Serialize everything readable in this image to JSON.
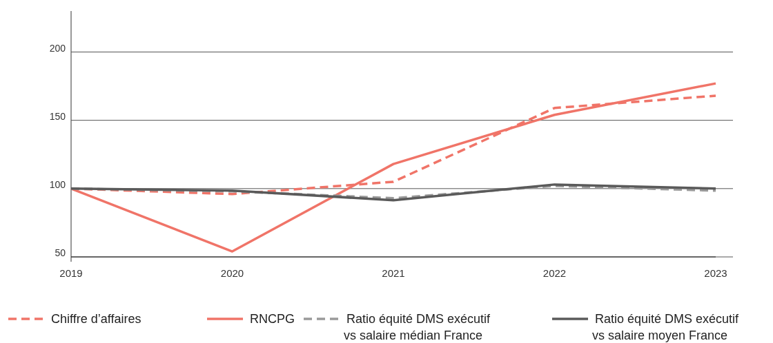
{
  "chart_data": {
    "type": "line",
    "categories": [
      "2019",
      "2020",
      "2021",
      "2022",
      "2023"
    ],
    "ylim": [
      50,
      230
    ],
    "yticks": [
      50,
      100,
      150,
      200
    ],
    "grid": "y",
    "legend": "bottom",
    "series": [
      {
        "name": "Chiffre d’affaires",
        "color": "#f07468",
        "line_style": "dashed",
        "values": [
          100,
          96,
          105,
          159,
          168
        ]
      },
      {
        "name": "RNCPG",
        "color": "#f07468",
        "line_style": "solid",
        "values": [
          100,
          54,
          118,
          154,
          177
        ]
      },
      {
        "name": "Ratio équité DMS exécutif\nvs salaire médian France",
        "color": "#9a9a9a",
        "line_style": "dashed",
        "values": [
          100,
          98,
          93,
          102,
          98.5
        ]
      },
      {
        "name": "Ratio équité DMS exécutif\nvs salaire moyen France",
        "color": "#5a5a5a",
        "line_style": "solid",
        "values": [
          100,
          98.5,
          91.5,
          103,
          100
        ]
      }
    ]
  }
}
